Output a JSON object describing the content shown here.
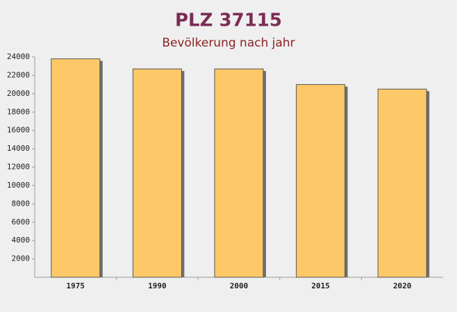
{
  "chart_data": {
    "type": "bar",
    "title": "PLZ 37115",
    "subtitle": "Bevölkerung nach jahr",
    "categories": [
      "1975",
      "1990",
      "2000",
      "2015",
      "2020"
    ],
    "values": [
      23800,
      22700,
      22700,
      21000,
      20500
    ],
    "color": "#fdc867",
    "ylim": [
      0,
      24000
    ],
    "yticks": [
      2000,
      4000,
      6000,
      8000,
      10000,
      12000,
      14000,
      16000,
      18000,
      20000,
      22000,
      24000
    ],
    "grid": false
  }
}
